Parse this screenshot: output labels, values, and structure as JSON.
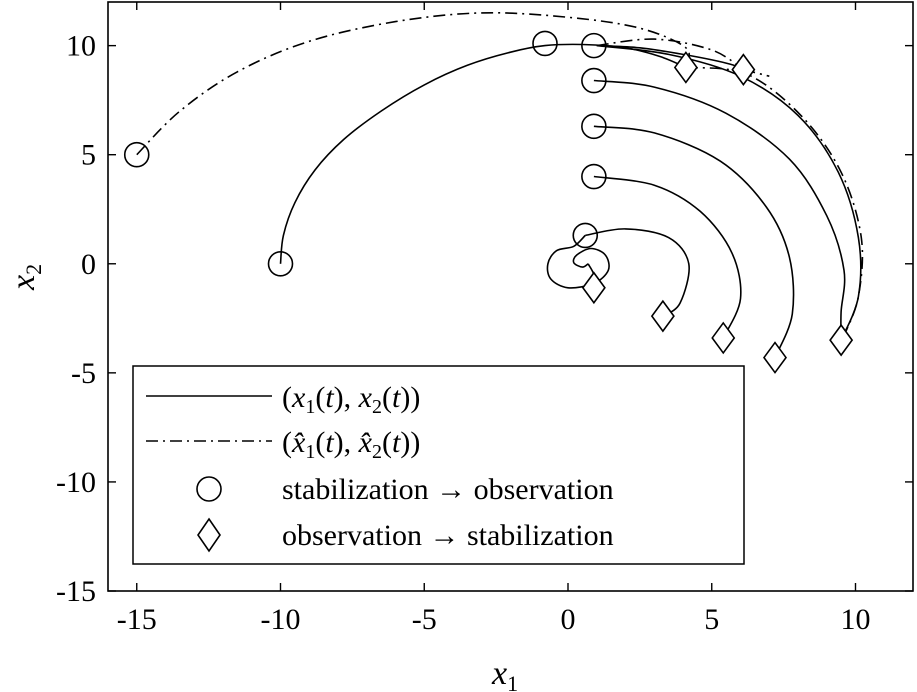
{
  "chart_data": {
    "type": "line",
    "title": "",
    "xlabel": "x",
    "xlabel_sub": "1",
    "ylabel": "x",
    "ylabel_sub": "2",
    "xlim": [
      -16,
      12
    ],
    "ylim": [
      -15,
      12
    ],
    "xticks": [
      -15,
      -10,
      -5,
      0,
      5,
      10
    ],
    "xtick_labels": [
      "-15",
      "-10",
      "-5",
      "0",
      "5",
      "10"
    ],
    "yticks": [
      -15,
      -10,
      -5,
      0,
      5,
      10
    ],
    "ytick_labels": [
      "-15",
      "-10",
      "-5",
      "0",
      "5",
      "10"
    ],
    "grid": false,
    "legend": {
      "placement": "lower-left",
      "entries": [
        {
          "name": "(x1(t), x2(t))",
          "marker": "solid-line"
        },
        {
          "name": "(x̂1(t), x̂2(t))",
          "marker": "dash-dot-line"
        },
        {
          "name": "stabilization → observation",
          "marker": "circle"
        },
        {
          "name": "observation → stabilization",
          "marker": "diamond"
        }
      ]
    },
    "series": [
      {
        "name": "(x1(t), x2(t))",
        "style": "solid",
        "segments": [
          [
            [
              -10,
              0
            ],
            [
              -9.9,
              1.3
            ],
            [
              -9.5,
              2.8
            ],
            [
              -8.8,
              4.3
            ],
            [
              -7.8,
              5.7
            ],
            [
              -6.5,
              7.0
            ],
            [
              -5.0,
              8.2
            ],
            [
              -3.5,
              9.1
            ],
            [
              -2.0,
              9.7
            ],
            [
              -0.8,
              10.0
            ],
            [
              0.5,
              10.05
            ],
            [
              2.0,
              9.9
            ],
            [
              3.2,
              9.5
            ],
            [
              4.1,
              9.0
            ]
          ],
          [
            [
              1.0,
              10.0
            ],
            [
              2.5,
              9.9
            ],
            [
              4.0,
              9.6
            ],
            [
              5.5,
              9.2
            ],
            [
              6.2,
              8.9
            ]
          ],
          [
            [
              1.0,
              10.0
            ],
            [
              3.5,
              9.6
            ],
            [
              6.0,
              8.6
            ],
            [
              8.0,
              6.8
            ],
            [
              9.4,
              4.2
            ],
            [
              10.1,
              1.2
            ],
            [
              10.1,
              -1.5
            ],
            [
              9.5,
              -3.5
            ]
          ],
          [
            [
              0.9,
              8.4
            ],
            [
              3.0,
              8.1
            ],
            [
              5.5,
              6.9
            ],
            [
              7.7,
              4.8
            ],
            [
              9.0,
              2.2
            ],
            [
              9.6,
              -0.3
            ],
            [
              9.5,
              -2.2
            ],
            [
              9.5,
              -3.5
            ]
          ],
          [
            [
              0.9,
              6.3
            ],
            [
              3.0,
              6.0
            ],
            [
              5.3,
              4.7
            ],
            [
              6.9,
              2.6
            ],
            [
              7.7,
              0.3
            ],
            [
              7.8,
              -2.3
            ],
            [
              7.2,
              -4.3
            ]
          ],
          [
            [
              0.9,
              4.0
            ],
            [
              3.0,
              3.6
            ],
            [
              4.6,
              2.4
            ],
            [
              5.7,
              0.5
            ],
            [
              6.0,
              -1.6
            ],
            [
              5.4,
              -3.4
            ]
          ],
          [
            [
              0.6,
              1.3
            ],
            [
              2.0,
              1.6
            ],
            [
              3.5,
              1.2
            ],
            [
              4.2,
              0
            ],
            [
              3.9,
              -1.8
            ],
            [
              3.3,
              -2.4
            ]
          ],
          [
            [
              0.6,
              1.3
            ],
            [
              0.2,
              0.8
            ],
            [
              -0.4,
              0.6
            ],
            [
              -0.7,
              0
            ],
            [
              -0.6,
              -0.7
            ],
            [
              0.0,
              -1.1
            ],
            [
              0.9,
              -0.9
            ],
            [
              1.4,
              -0.3
            ],
            [
              1.3,
              0.4
            ],
            [
              0.8,
              0.7
            ],
            [
              0.3,
              0.4
            ],
            [
              0.2,
              0.05
            ],
            [
              0.5,
              -0.15
            ],
            [
              0.7,
              0.0
            ]
          ],
          [
            [
              0.7,
              0.0
            ],
            [
              0.9,
              -0.5
            ],
            [
              0.9,
              -1.1
            ]
          ]
        ]
      },
      {
        "name": "(x̂1(t), x̂2(t))",
        "style": "dashdot",
        "segments": [
          [
            [
              -15,
              5
            ],
            [
              -13.5,
              7.0
            ],
            [
              -11.5,
              8.8
            ],
            [
              -9.0,
              10.2
            ],
            [
              -6.0,
              11.1
            ],
            [
              -3.0,
              11.5
            ],
            [
              0,
              11.3
            ],
            [
              2.5,
              10.8
            ],
            [
              4.1,
              9.9
            ],
            [
              4.1,
              9.0
            ]
          ],
          [
            [
              1.0,
              10.0
            ],
            [
              3.0,
              10.3
            ],
            [
              5.0,
              9.8
            ],
            [
              6.1,
              8.9
            ]
          ],
          [
            [
              4.1,
              9.0
            ],
            [
              6.2,
              8.7
            ],
            [
              8.1,
              6.8
            ],
            [
              9.5,
              4.2
            ],
            [
              10.2,
              1.2
            ],
            [
              10.1,
              -1.5
            ],
            [
              9.6,
              -3.3
            ]
          ],
          [
            [
              6.1,
              8.9
            ],
            [
              7.0,
              8.6
            ]
          ]
        ]
      }
    ],
    "markers": {
      "circle": [
        [
          -10,
          0
        ],
        [
          -15,
          5
        ],
        [
          -0.8,
          10.1
        ],
        [
          0.9,
          10.0
        ],
        [
          0.9,
          8.4
        ],
        [
          0.9,
          6.3
        ],
        [
          0.9,
          4.0
        ],
        [
          0.6,
          1.3
        ]
      ],
      "diamond": [
        [
          4.1,
          9.0
        ],
        [
          6.1,
          8.9
        ],
        [
          9.5,
          -3.5
        ],
        [
          7.2,
          -4.3
        ],
        [
          5.4,
          -3.4
        ],
        [
          3.3,
          -2.4
        ],
        [
          0.9,
          -1.1
        ]
      ]
    }
  }
}
